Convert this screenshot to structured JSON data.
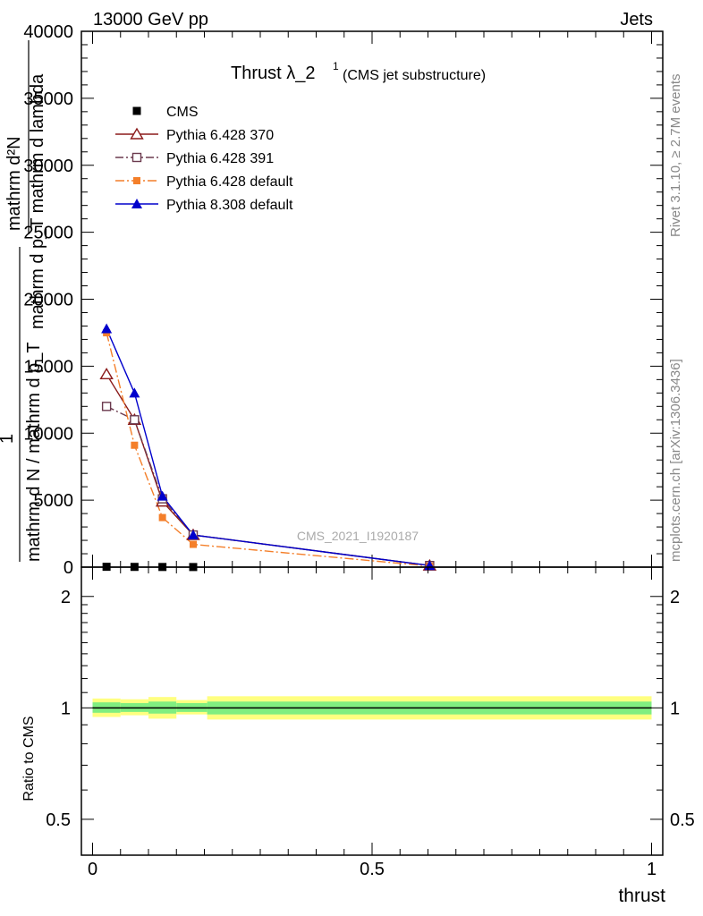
{
  "header": {
    "left": "13000 GeV pp",
    "right": "Jets"
  },
  "title": {
    "main": "Thrust λ_2",
    "sup": "1",
    "sub": "(CMS jet substructure)"
  },
  "side_text": {
    "rivet": "Rivet 3.1.10, ≥ 2.7M events",
    "mcplots": "mcplots.cern.ch [arXiv:1306.3436]"
  },
  "watermark": "CMS_2021_I1920187",
  "ylabel_main": {
    "line1": "mathrm d²N",
    "line2": "mathrm d p_T mathrm d lambda",
    "line3": "1",
    "line4": "mathrm d N / mathrm d p_T"
  },
  "ylabel_ratio": "Ratio to CMS",
  "xlabel": "thrust",
  "colors": {
    "cms": "#000000",
    "p370": "#8b1a1a",
    "p391": "#6b3a4e",
    "pdef": "#f47f2a",
    "p8": "#0000cc",
    "band_yellow": "#ffff80",
    "band_green": "#80ee80"
  },
  "chart_data": [
    {
      "type": "line",
      "panel": "main",
      "xlim": [
        -0.02,
        1.02
      ],
      "ylim": [
        0,
        40000
      ],
      "yticks": [
        0,
        5000,
        10000,
        15000,
        20000,
        25000,
        30000,
        35000,
        40000
      ],
      "ytick_labels": [
        "0",
        "5000",
        "10000",
        "15000",
        "20000",
        "25000",
        "30000",
        "35000",
        "40000"
      ],
      "legend_position": "top-left",
      "series": [
        {
          "name": "CMS",
          "style": "data",
          "x": [
            0.025,
            0.075,
            0.125,
            0.18
          ],
          "y": [
            25,
            18,
            12,
            8
          ]
        },
        {
          "name": "Pythia 6.428 370",
          "style": "p370",
          "x": [
            0.025,
            0.075,
            0.125,
            0.18,
            0.603
          ],
          "y": [
            14400,
            11000,
            4900,
            2400,
            120
          ]
        },
        {
          "name": "Pythia 6.428 391",
          "style": "p391",
          "x": [
            0.025,
            0.075,
            0.125,
            0.18,
            0.603
          ],
          "y": [
            12000,
            11000,
            5100,
            2400,
            120
          ]
        },
        {
          "name": "Pythia 6.428 default",
          "style": "pdef",
          "x": [
            0.025,
            0.075,
            0.125,
            0.18,
            0.603
          ],
          "y": [
            17500,
            9100,
            3700,
            1700,
            80
          ]
        },
        {
          "name": "Pythia 8.308 default",
          "style": "p8",
          "x": [
            0.025,
            0.075,
            0.125,
            0.18,
            0.603
          ],
          "y": [
            17800,
            13000,
            5300,
            2400,
            120
          ]
        }
      ]
    },
    {
      "type": "area",
      "panel": "ratio",
      "xlim": [
        -0.02,
        1.02
      ],
      "ylim": [
        0.4,
        2.4
      ],
      "scale": "log",
      "yticks": [
        0.5,
        1,
        2
      ],
      "ytick_labels": [
        "0.5",
        "1",
        "2"
      ],
      "xticks": [
        0,
        0.5,
        1
      ],
      "xtick_labels": [
        "0",
        "0.5",
        "1"
      ],
      "reference": 1.0,
      "bands": {
        "edges": [
          0.0,
          0.05,
          0.1,
          0.15,
          0.205,
          1.0
        ],
        "yellow_lo": [
          0.945,
          0.955,
          0.935,
          0.96,
          0.93
        ],
        "yellow_hi": [
          1.06,
          1.055,
          1.07,
          1.05,
          1.075
        ],
        "green_lo": [
          0.97,
          0.975,
          0.965,
          0.975,
          0.96
        ],
        "green_hi": [
          1.035,
          1.03,
          1.04,
          1.03,
          1.04
        ]
      }
    }
  ]
}
